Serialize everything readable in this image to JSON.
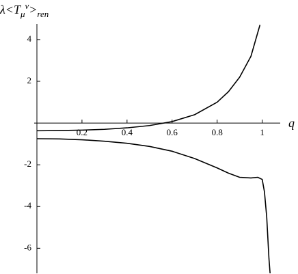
{
  "chart_data": {
    "type": "line",
    "ylabel": [
      "λ<T",
      "μ",
      "ν",
      ">",
      "ren"
    ],
    "xlabel": "q",
    "xlim": [
      0,
      1.08
    ],
    "ylim": [
      -7.2,
      4.75
    ],
    "xticks": [
      0.2,
      0.4,
      0.6,
      0.8,
      1
    ],
    "yticks": [
      -6,
      -4,
      -2,
      2,
      4
    ],
    "grid": false,
    "series": [
      {
        "color": "#000000",
        "x": [
          0,
          0.1,
          0.2,
          0.3,
          0.4,
          0.5,
          0.6,
          0.7,
          0.8,
          0.85,
          0.9,
          0.95,
          0.99
        ],
        "values": [
          -0.37,
          -0.36,
          -0.34,
          -0.3,
          -0.23,
          -0.12,
          0.07,
          0.4,
          1.0,
          1.5,
          2.2,
          3.2,
          4.7
        ]
      },
      {
        "color": "#000000",
        "x": [
          0,
          0.1,
          0.2,
          0.3,
          0.4,
          0.5,
          0.6,
          0.7,
          0.8,
          0.85,
          0.9,
          0.95,
          0.98,
          1.0,
          1.01,
          1.02,
          1.03,
          1.035
        ],
        "values": [
          -0.75,
          -0.76,
          -0.8,
          -0.87,
          -0.97,
          -1.12,
          -1.35,
          -1.7,
          -2.15,
          -2.4,
          -2.6,
          -2.63,
          -2.6,
          -2.7,
          -3.3,
          -4.5,
          -6.5,
          -7.2
        ]
      }
    ]
  }
}
